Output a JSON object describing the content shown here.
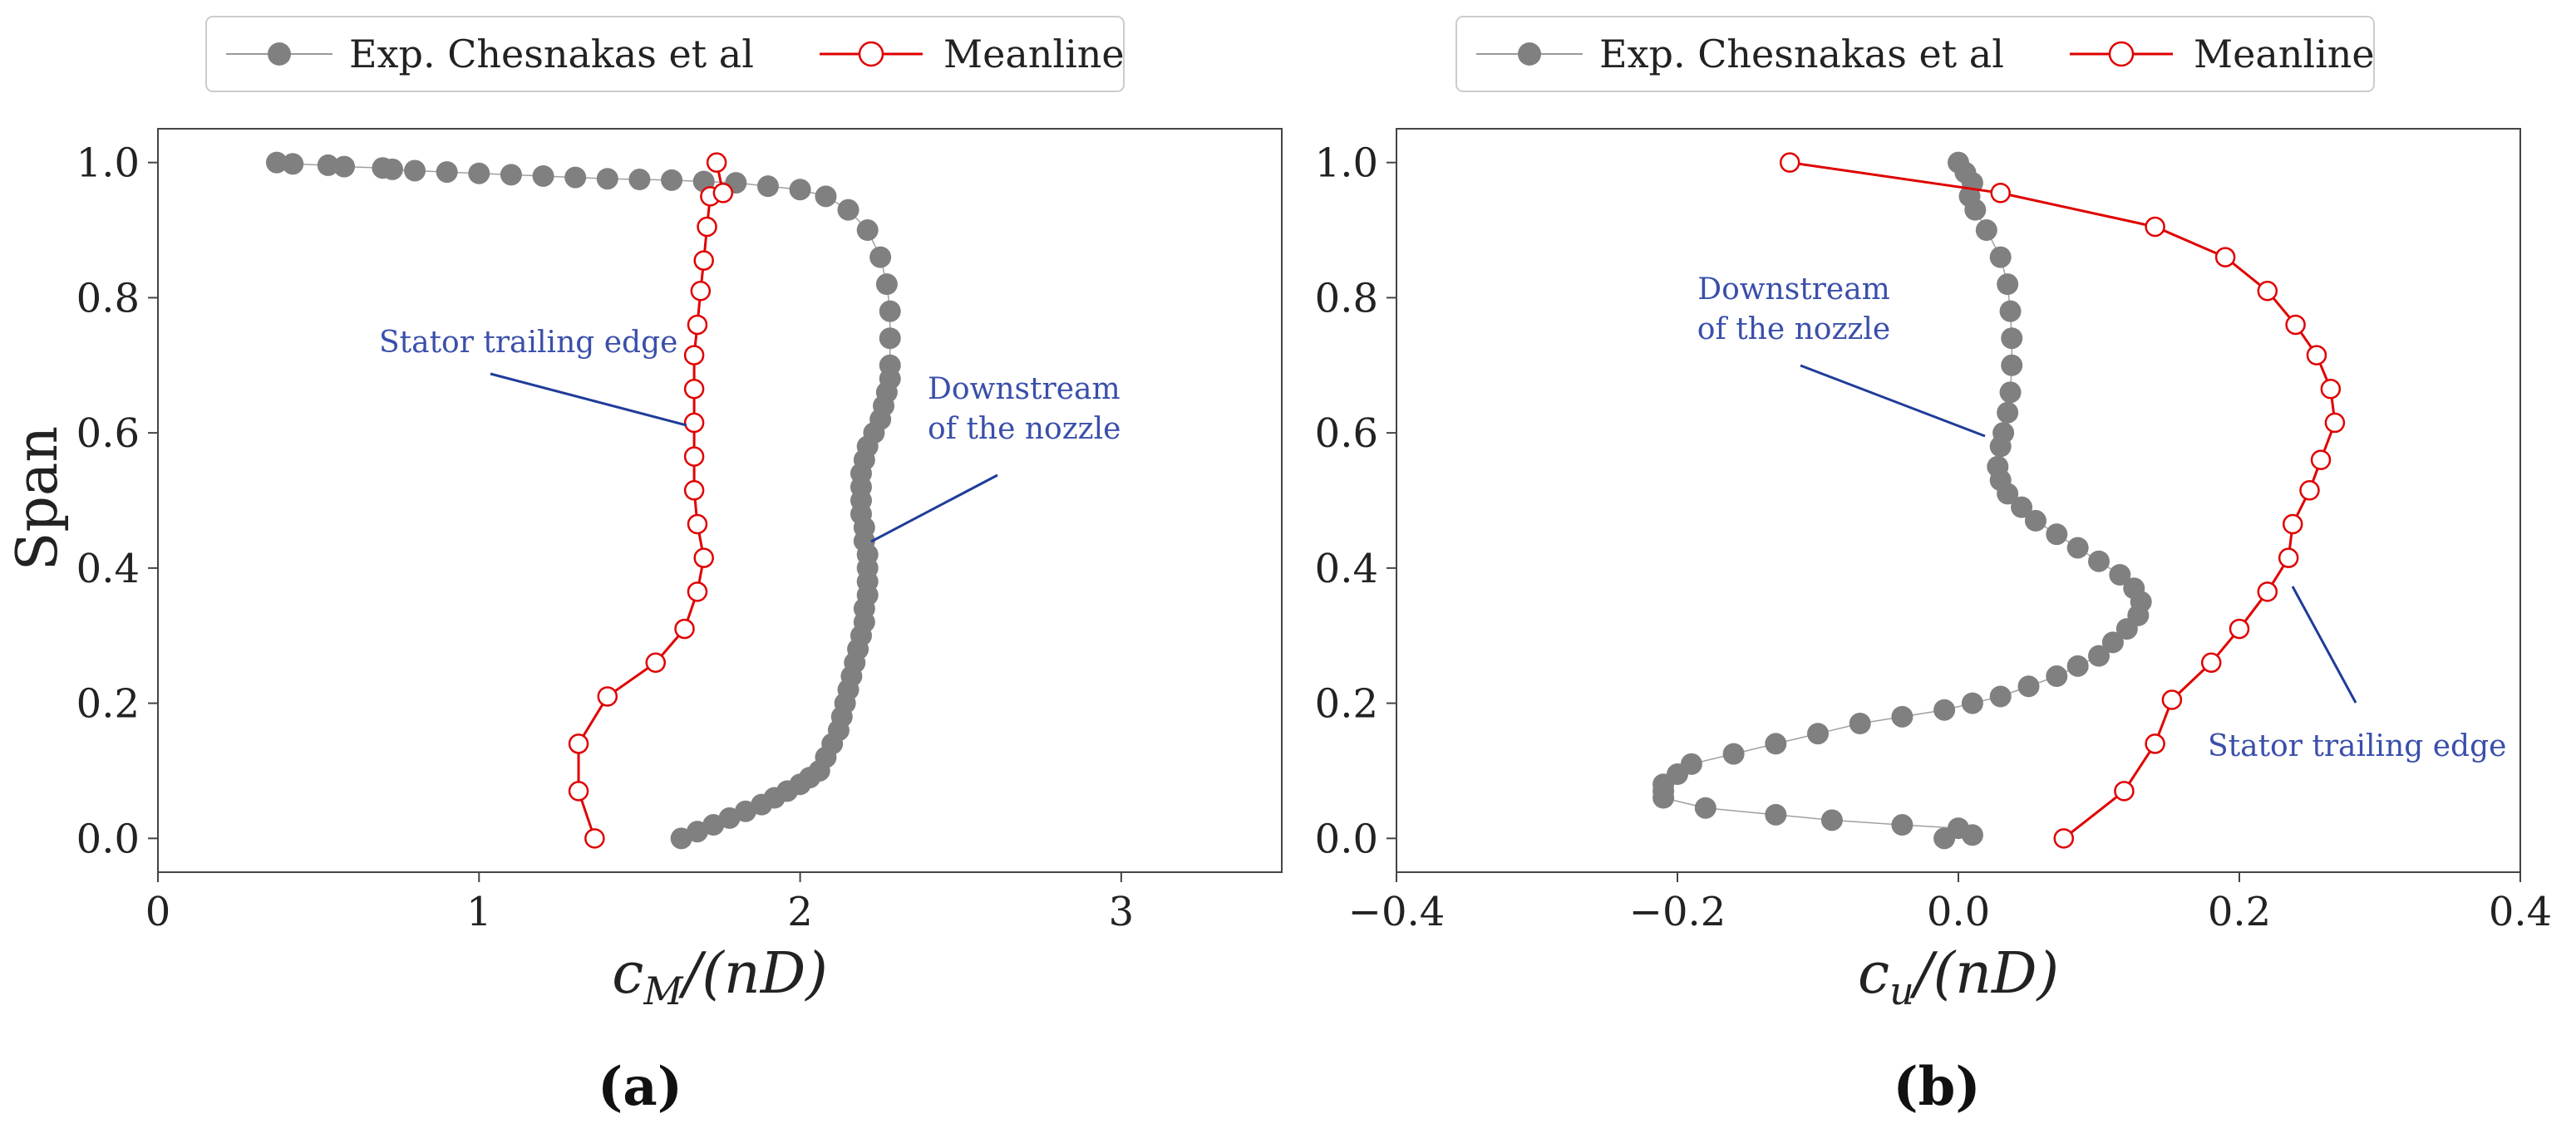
{
  "chart_data": [
    {
      "id": "a",
      "type": "line",
      "panel_label": "(a)",
      "xlabel": "c_M/(nD)",
      "xlabel_main": "c",
      "xlabel_sub": "M",
      "xlabel_rest": "/(nD)",
      "ylabel": "Span",
      "xlim": [
        0,
        3.5
      ],
      "ylim": [
        -0.05,
        1.05
      ],
      "xticks": [
        0,
        1,
        2,
        3
      ],
      "xtick_labels": [
        "0",
        "1",
        "2",
        "3"
      ],
      "yticks": [
        0.0,
        0.2,
        0.4,
        0.6,
        0.8,
        1.0
      ],
      "ytick_labels": [
        "0.0",
        "0.2",
        "0.4",
        "0.6",
        "0.8",
        "1.0"
      ],
      "legend": {
        "placement": "top-center-outside",
        "entries": [
          {
            "label": "Exp. Chesnakas et al",
            "series": "exp"
          },
          {
            "label": "Meanline",
            "series": "meanline"
          }
        ]
      },
      "series": [
        {
          "name": "Exp. Chesnakas et al",
          "key": "exp",
          "style": "filled-gray-markers",
          "color": "#808080",
          "x": [
            1.63,
            1.68,
            1.73,
            1.78,
            1.83,
            1.88,
            1.92,
            1.96,
            2.0,
            2.03,
            2.06,
            2.08,
            2.1,
            2.12,
            2.13,
            2.14,
            2.15,
            2.16,
            2.17,
            2.18,
            2.19,
            2.2,
            2.2,
            2.21,
            2.21,
            2.21,
            2.21,
            2.2,
            2.2,
            2.19,
            2.19,
            2.19,
            2.19,
            2.2,
            2.21,
            2.23,
            2.25,
            2.26,
            2.27,
            2.28,
            2.28,
            2.28,
            2.28,
            2.27,
            2.25,
            2.21,
            2.15,
            2.08,
            2.0,
            1.9,
            1.8,
            1.7,
            1.6,
            1.5,
            1.4,
            1.3,
            1.2,
            1.1,
            1.0,
            0.9,
            0.8,
            0.73,
            0.7,
            0.58,
            0.53,
            0.42,
            0.37
          ],
          "y": [
            0.0,
            0.01,
            0.02,
            0.03,
            0.04,
            0.05,
            0.06,
            0.07,
            0.08,
            0.09,
            0.1,
            0.12,
            0.14,
            0.16,
            0.18,
            0.2,
            0.22,
            0.24,
            0.26,
            0.28,
            0.3,
            0.32,
            0.34,
            0.36,
            0.38,
            0.4,
            0.42,
            0.44,
            0.46,
            0.48,
            0.5,
            0.52,
            0.54,
            0.56,
            0.58,
            0.6,
            0.62,
            0.64,
            0.66,
            0.68,
            0.7,
            0.74,
            0.78,
            0.82,
            0.86,
            0.9,
            0.93,
            0.95,
            0.96,
            0.965,
            0.97,
            0.972,
            0.974,
            0.975,
            0.976,
            0.978,
            0.98,
            0.982,
            0.984,
            0.986,
            0.988,
            0.99,
            0.992,
            0.994,
            0.996,
            0.998,
            1.0
          ]
        },
        {
          "name": "Meanline",
          "key": "meanline",
          "style": "red-line-open-markers",
          "color": "#e00000",
          "x": [
            1.36,
            1.31,
            1.31,
            1.4,
            1.55,
            1.64,
            1.68,
            1.7,
            1.68,
            1.67,
            1.67,
            1.67,
            1.67,
            1.67,
            1.68,
            1.69,
            1.7,
            1.71,
            1.72,
            1.76,
            1.74
          ],
          "y": [
            0.0,
            0.07,
            0.14,
            0.21,
            0.26,
            0.31,
            0.365,
            0.415,
            0.465,
            0.515,
            0.565,
            0.615,
            0.665,
            0.715,
            0.76,
            0.81,
            0.855,
            0.905,
            0.95,
            0.955,
            1.0
          ]
        }
      ],
      "annotations": [
        {
          "text": "Stator trailing edge",
          "lines": [
            "Stator trailing edge"
          ],
          "target": "meanline"
        },
        {
          "text": "Downstream of the nozzle",
          "lines": [
            "Downstream",
            "of the nozzle"
          ],
          "target": "exp"
        }
      ]
    },
    {
      "id": "b",
      "type": "line",
      "panel_label": "(b)",
      "xlabel": "c_u/(nD)",
      "xlabel_main": "c",
      "xlabel_sub": "u",
      "xlabel_rest": "/(nD)",
      "ylabel": "",
      "xlim": [
        -0.4,
        0.4
      ],
      "ylim": [
        -0.05,
        1.05
      ],
      "xticks": [
        -0.4,
        -0.2,
        0.0,
        0.2,
        0.4
      ],
      "xtick_labels": [
        "−0.4",
        "−0.2",
        "0.0",
        "0.2",
        "0.4"
      ],
      "yticks": [
        0.0,
        0.2,
        0.4,
        0.6,
        0.8,
        1.0
      ],
      "ytick_labels": [
        "0.0",
        "0.2",
        "0.4",
        "0.6",
        "0.8",
        "1.0"
      ],
      "legend": {
        "placement": "top-center-outside",
        "entries": [
          {
            "label": "Exp. Chesnakas et al",
            "series": "exp"
          },
          {
            "label": "Meanline",
            "series": "meanline"
          }
        ]
      },
      "series": [
        {
          "name": "Exp. Chesnakas et al",
          "key": "exp",
          "style": "filled-gray-markers",
          "color": "#808080",
          "x": [
            0.01,
            -0.01,
            0.0,
            -0.04,
            -0.09,
            -0.13,
            -0.18,
            -0.21,
            -0.21,
            -0.21,
            -0.2,
            -0.19,
            -0.16,
            -0.13,
            -0.1,
            -0.07,
            -0.04,
            -0.01,
            0.01,
            0.03,
            0.05,
            0.07,
            0.085,
            0.1,
            0.11,
            0.12,
            0.128,
            0.13,
            0.125,
            0.115,
            0.1,
            0.085,
            0.07,
            0.055,
            0.045,
            0.035,
            0.03,
            0.028,
            0.03,
            0.032,
            0.035,
            0.037,
            0.038,
            0.038,
            0.037,
            0.035,
            0.03,
            0.02,
            0.012,
            0.008,
            0.01,
            0.005,
            0.0
          ],
          "y": [
            0.005,
            0.0,
            0.015,
            0.02,
            0.027,
            0.035,
            0.045,
            0.06,
            0.07,
            0.08,
            0.095,
            0.11,
            0.125,
            0.14,
            0.155,
            0.17,
            0.18,
            0.19,
            0.2,
            0.21,
            0.225,
            0.24,
            0.255,
            0.27,
            0.29,
            0.31,
            0.33,
            0.35,
            0.37,
            0.39,
            0.41,
            0.43,
            0.45,
            0.47,
            0.49,
            0.51,
            0.53,
            0.55,
            0.58,
            0.6,
            0.63,
            0.66,
            0.7,
            0.74,
            0.78,
            0.82,
            0.86,
            0.9,
            0.93,
            0.95,
            0.97,
            0.985,
            1.0
          ]
        },
        {
          "name": "Meanline",
          "key": "meanline",
          "style": "red-line-open-markers",
          "color": "#e00000",
          "x": [
            0.075,
            0.118,
            0.14,
            0.152,
            0.18,
            0.2,
            0.22,
            0.235,
            0.238,
            0.25,
            0.258,
            0.268,
            0.265,
            0.255,
            0.24,
            0.22,
            0.19,
            0.14,
            0.03,
            -0.12
          ],
          "y": [
            0.0,
            0.07,
            0.14,
            0.205,
            0.26,
            0.31,
            0.365,
            0.415,
            0.465,
            0.515,
            0.56,
            0.615,
            0.665,
            0.715,
            0.76,
            0.81,
            0.86,
            0.905,
            0.955,
            1.0
          ]
        }
      ],
      "annotations": [
        {
          "text": "Downstream of the nozzle",
          "lines": [
            "Downstream",
            "of the nozzle"
          ],
          "target": "exp"
        },
        {
          "text": "Stator trailing edge",
          "lines": [
            "Stator trailing edge"
          ],
          "target": "meanline"
        }
      ]
    }
  ]
}
